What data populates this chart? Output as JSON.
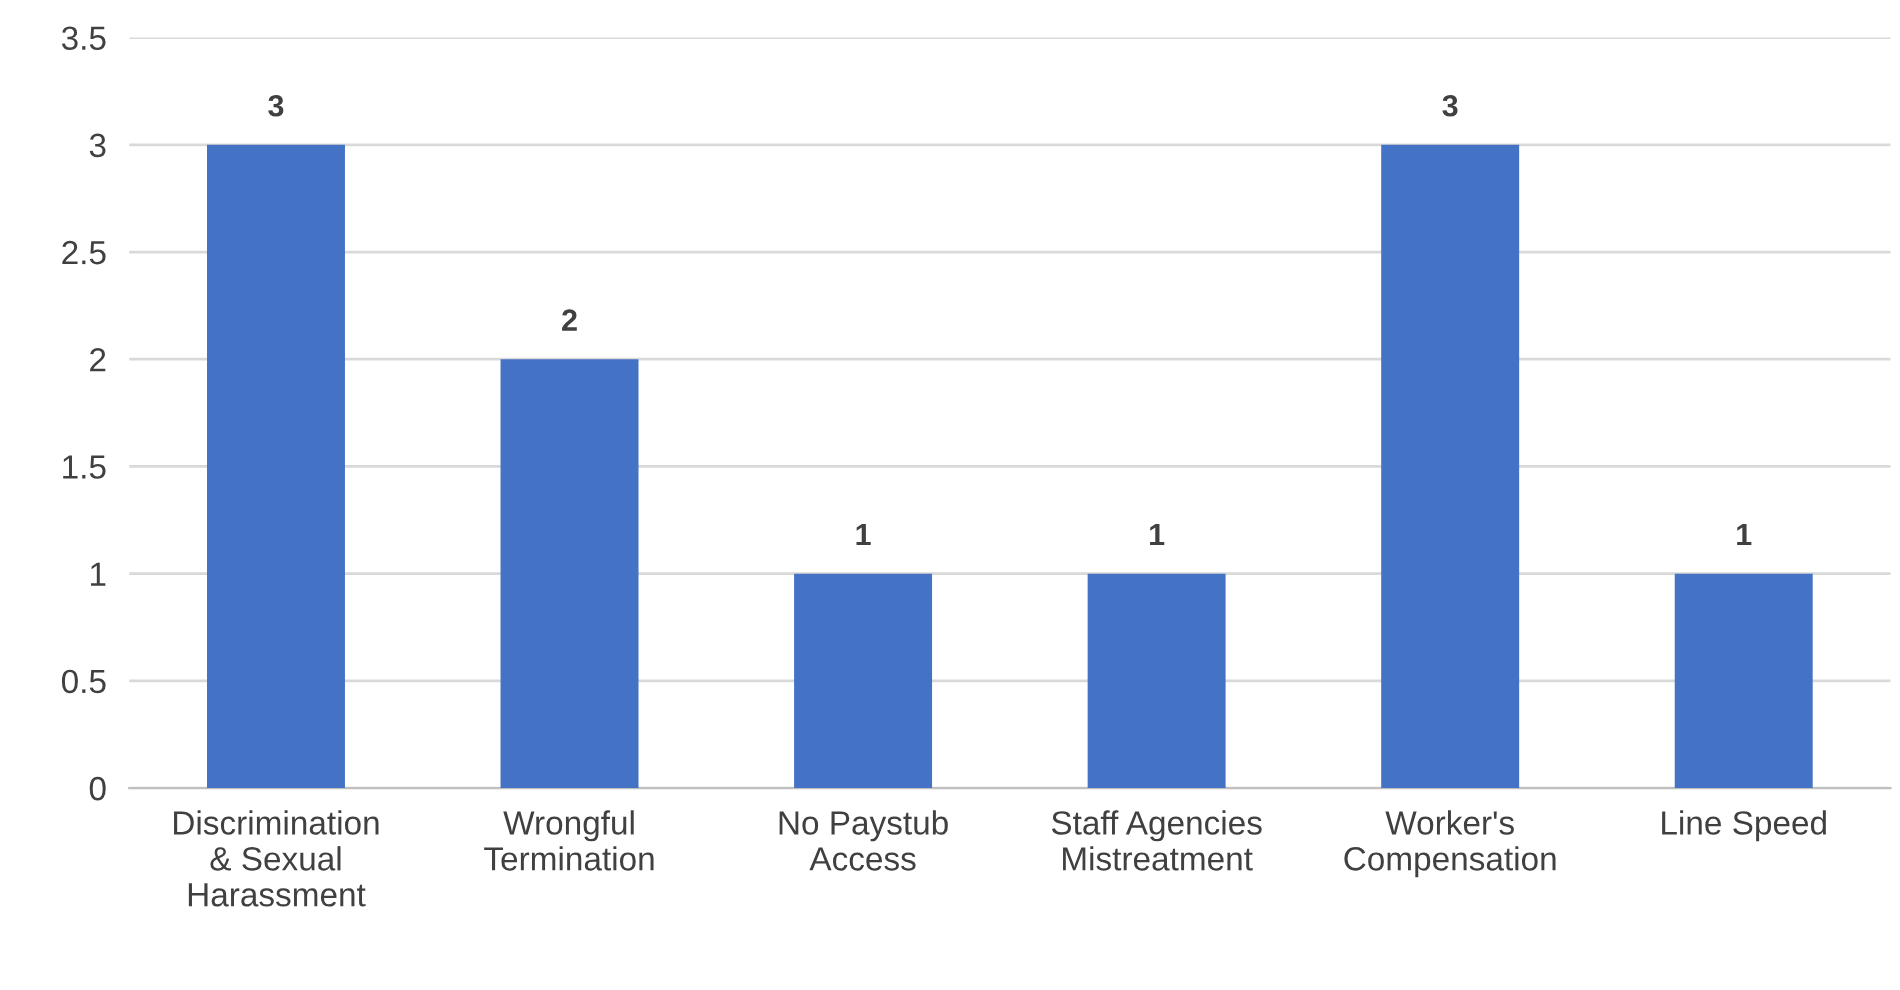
{
  "chart_data": {
    "type": "bar",
    "categories": [
      "Discrimination & Sexual Harassment",
      "Wrongful Termination",
      "No Paystub Access",
      "Staff Agencies Mistreatment",
      "Worker's Compensation",
      "Line Speed"
    ],
    "values": [
      3,
      2,
      1,
      1,
      3,
      1
    ],
    "color": "#4472c4",
    "ylim": [
      0,
      3.5
    ],
    "yticks": [
      0,
      0.5,
      1,
      1.5,
      2,
      2.5,
      3,
      3.5
    ],
    "grid": "y",
    "data_labels": true
  }
}
